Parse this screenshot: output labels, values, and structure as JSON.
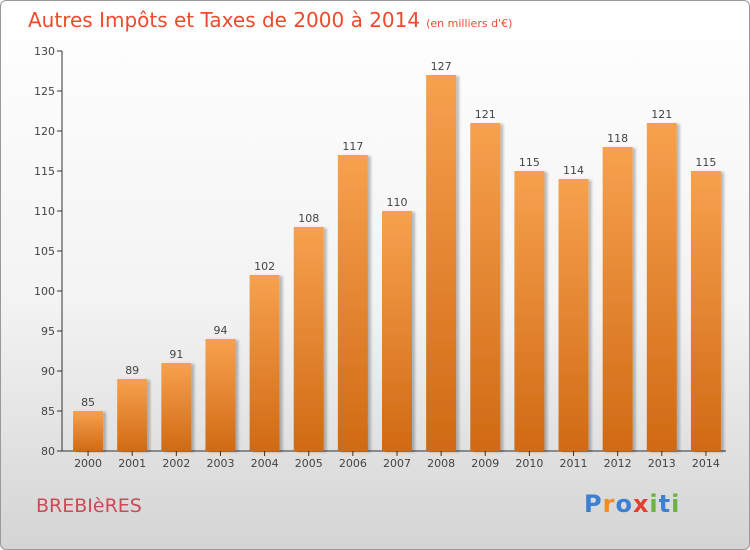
{
  "header": {
    "title": "Autres Impôts et Taxes de 2000 à 2014",
    "unit": "(en milliers d'€)"
  },
  "footer": {
    "commune": "BREBIèRES",
    "logo_text": "Proxiti",
    "logo_letters": [
      {
        "ch": "P",
        "color": "#3d7fd0"
      },
      {
        "ch": "r",
        "color": "#ef8c25"
      },
      {
        "ch": "o",
        "color": "#3d7fd0"
      },
      {
        "ch": "x",
        "color": "#e63d2e"
      },
      {
        "ch": "i",
        "color": "#6cb33f"
      },
      {
        "ch": "t",
        "color": "#3d7fd0"
      },
      {
        "ch": "i",
        "color": "#6cb33f"
      }
    ]
  },
  "chart_data": {
    "type": "bar",
    "title": "Autres Impôts et Taxes de 2000 à 2014",
    "subtitle": "(en milliers d'€)",
    "categories": [
      "2000",
      "2001",
      "2002",
      "2003",
      "2004",
      "2005",
      "2006",
      "2007",
      "2008",
      "2009",
      "2010",
      "2011",
      "2012",
      "2013",
      "2014"
    ],
    "values": [
      85,
      89,
      91,
      94,
      102,
      108,
      117,
      110,
      127,
      121,
      115,
      114,
      118,
      121,
      115
    ],
    "ylim": [
      80,
      130
    ],
    "yticks": [
      80,
      85,
      90,
      95,
      100,
      105,
      110,
      115,
      120,
      125,
      130
    ],
    "grid": false,
    "bar_color_top": "#f7a14e",
    "bar_color_bottom": "#d06a14"
  }
}
